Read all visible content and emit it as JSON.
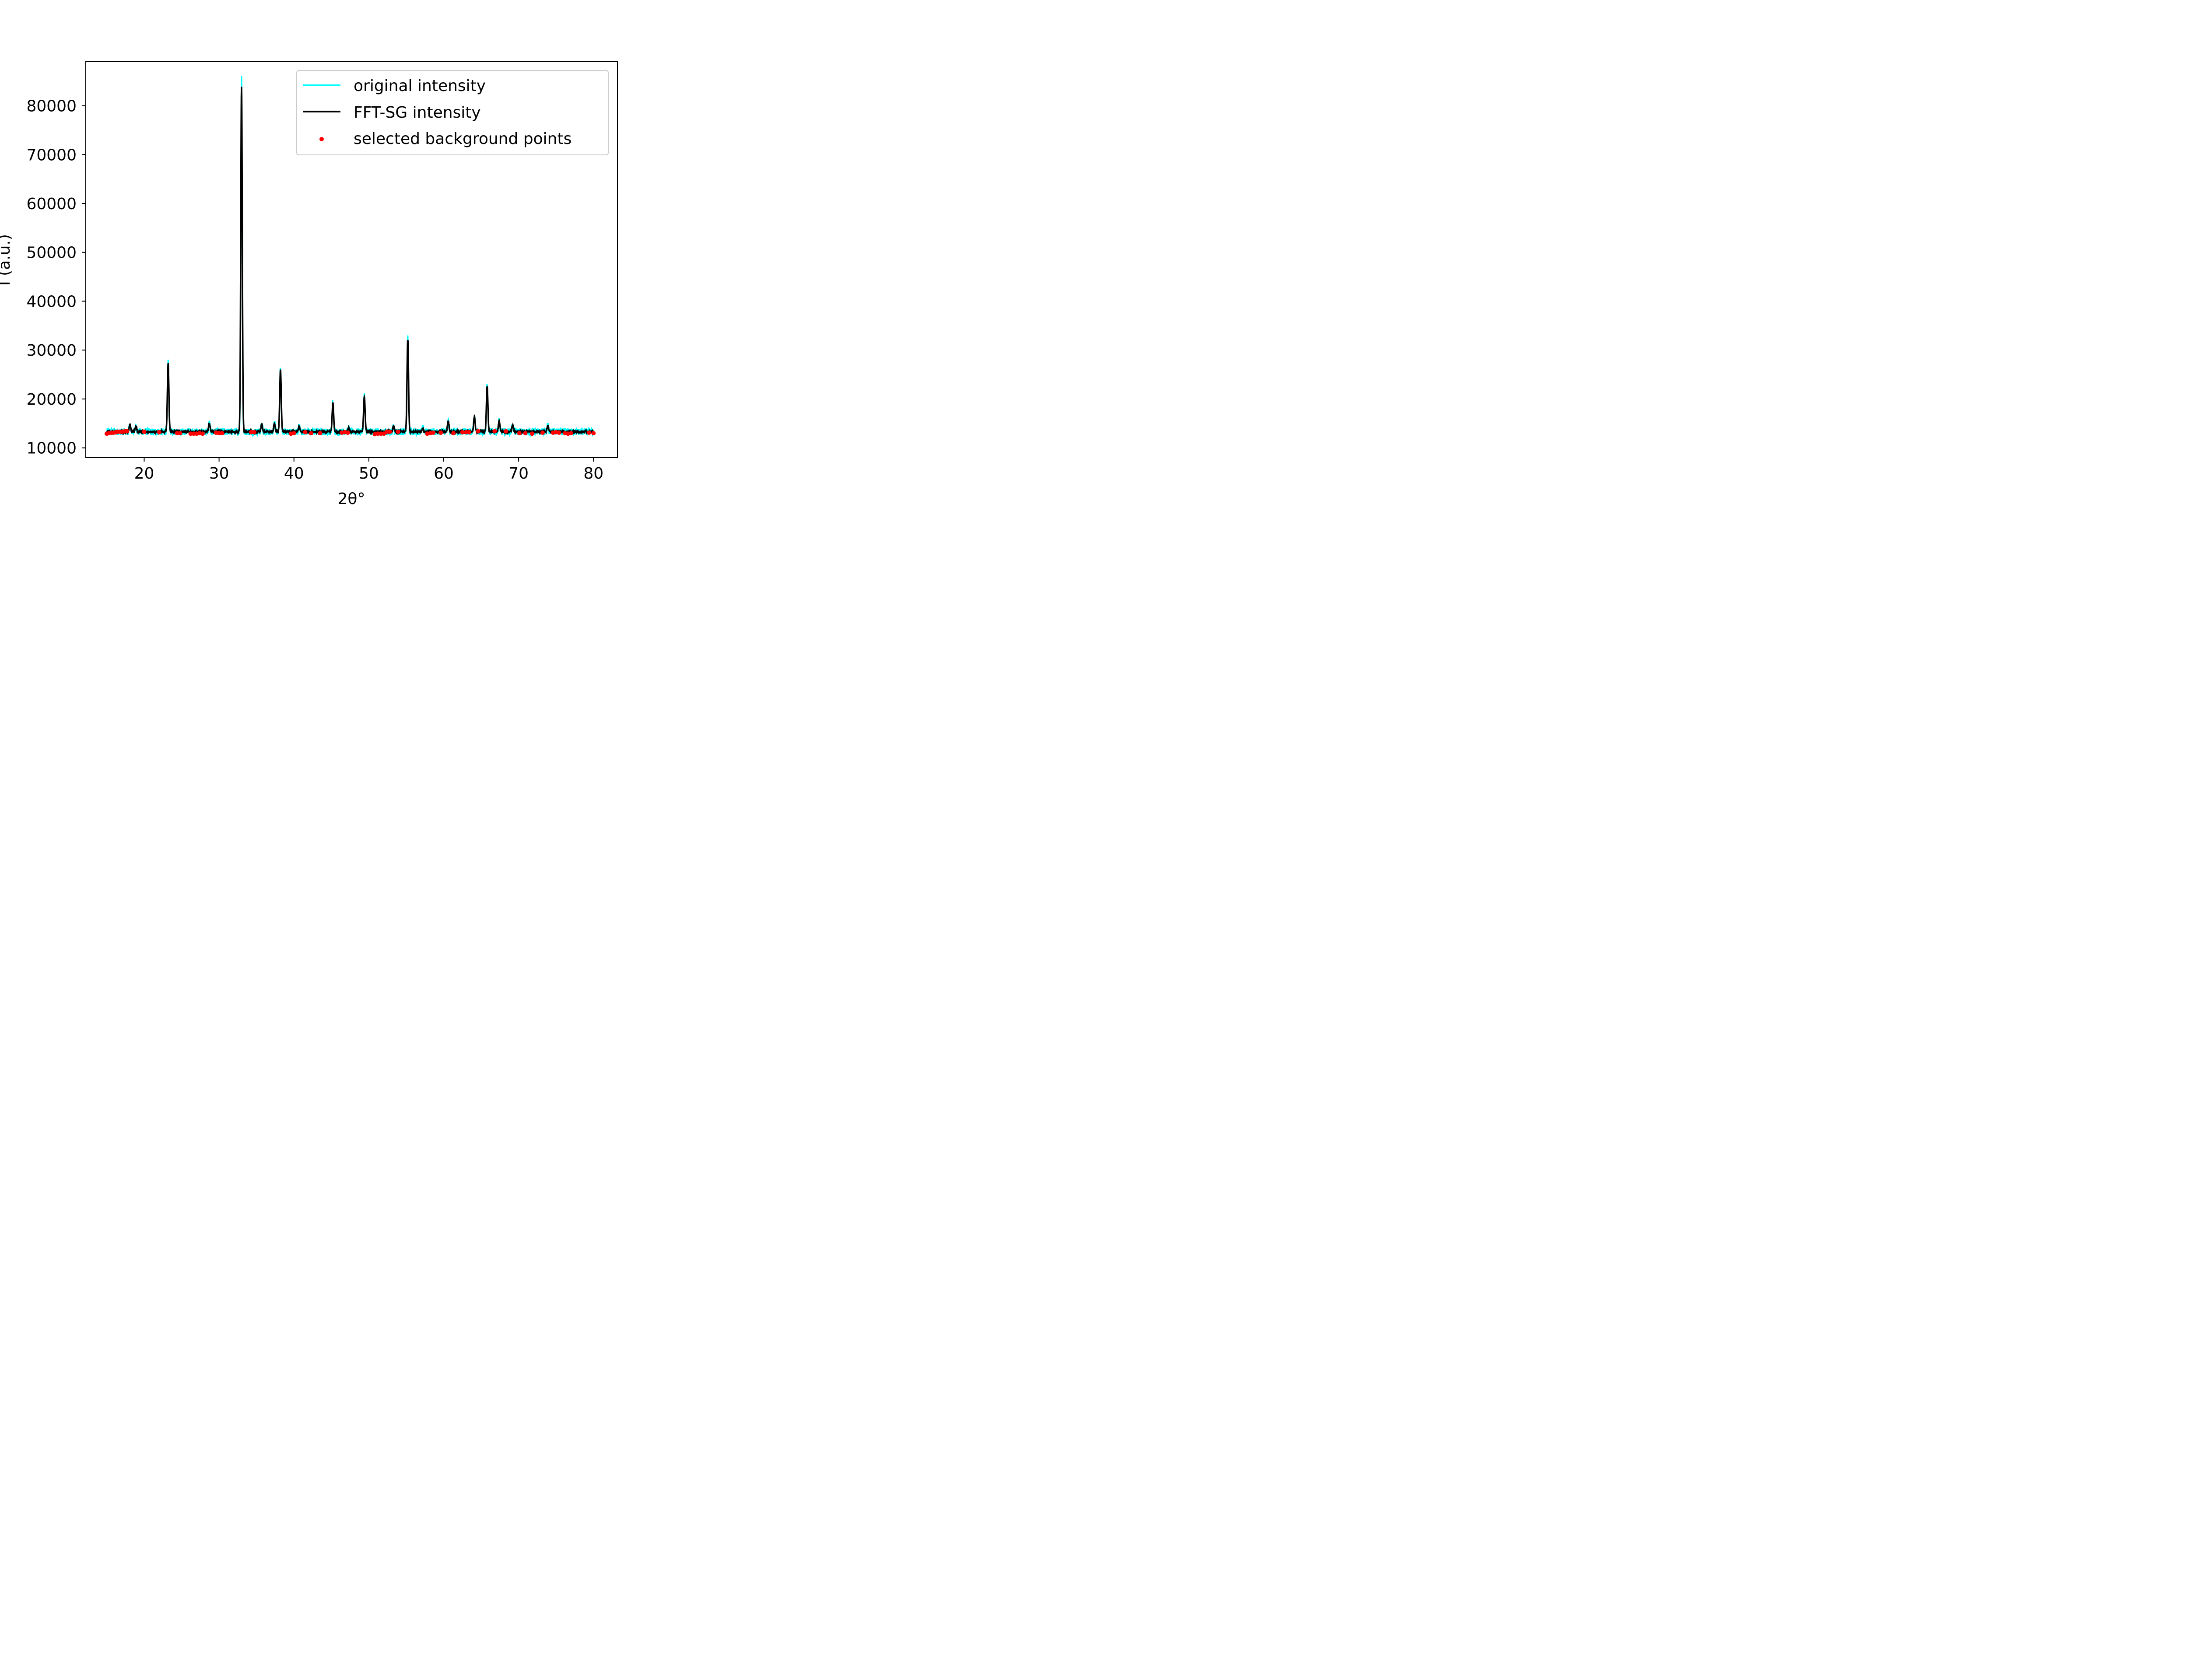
{
  "chart_data": {
    "type": "line",
    "title": "",
    "xlabel": "2θ°",
    "ylabel": "I (a.u.)",
    "xlim": [
      12.2,
      83.2
    ],
    "ylim": [
      8000,
      89000
    ],
    "xticks": [
      20,
      30,
      40,
      50,
      60,
      70,
      80
    ],
    "yticks": [
      10000,
      20000,
      30000,
      40000,
      50000,
      60000,
      70000,
      80000
    ],
    "xtick_labels": [
      "20",
      "30",
      "40",
      "50",
      "60",
      "70",
      "80"
    ],
    "ytick_labels": [
      "10000",
      "20000",
      "30000",
      "40000",
      "50000",
      "60000",
      "70000",
      "80000"
    ],
    "grid": false,
    "legend_position": "upper right",
    "baseline": 13300,
    "x_range": [
      15,
      80
    ],
    "colors": {
      "original": "#00ffff",
      "fft_sg": "#000000",
      "background_points": "#ff0000"
    },
    "peaks": [
      {
        "x": 18.1,
        "y": 14700
      },
      {
        "x": 18.9,
        "y": 14400
      },
      {
        "x": 23.2,
        "y": 27200
      },
      {
        "x": 28.7,
        "y": 15000
      },
      {
        "x": 33.0,
        "y": 84000
      },
      {
        "x": 35.7,
        "y": 14800
      },
      {
        "x": 37.4,
        "y": 15000
      },
      {
        "x": 38.2,
        "y": 26000
      },
      {
        "x": 40.7,
        "y": 14400
      },
      {
        "x": 45.2,
        "y": 19200
      },
      {
        "x": 47.3,
        "y": 14000
      },
      {
        "x": 49.4,
        "y": 20500
      },
      {
        "x": 53.3,
        "y": 14500
      },
      {
        "x": 55.2,
        "y": 32200
      },
      {
        "x": 57.2,
        "y": 14000
      },
      {
        "x": 60.6,
        "y": 15500
      },
      {
        "x": 64.1,
        "y": 16300
      },
      {
        "x": 65.8,
        "y": 22600
      },
      {
        "x": 67.4,
        "y": 15500
      },
      {
        "x": 69.2,
        "y": 14600
      },
      {
        "x": 73.9,
        "y": 14600
      }
    ],
    "series": [
      {
        "name": "original intensity"
      },
      {
        "name": "FFT-SG intensity"
      },
      {
        "name": "selected background points",
        "x": [
          15.0,
          15.3,
          15.6,
          15.9,
          16.2,
          16.5,
          16.8,
          17.1,
          17.4,
          17.7,
          20.0,
          22.0,
          24.4,
          24.8,
          26.2,
          26.6,
          27.0,
          27.4,
          27.8,
          29.6,
          30.0,
          30.4,
          34.3,
          34.7,
          39.6,
          40.0,
          41.5,
          42.3,
          43.5,
          46.4,
          46.8,
          47.2,
          50.8,
          51.2,
          51.6,
          52.0,
          52.4,
          52.8,
          53.9,
          57.8,
          58.2,
          58.6,
          59.6,
          61.3,
          62.5,
          63.0,
          63.4,
          64.6,
          66.8,
          68.3,
          70.1,
          70.9,
          71.8,
          73.2,
          74.6,
          75.0,
          75.4,
          76.2,
          76.6,
          77.0,
          79.4,
          80.0
        ],
        "y": [
          12900,
          13000,
          13100,
          13100,
          13200,
          13300,
          13300,
          13300,
          13400,
          13400,
          13300,
          13200,
          13000,
          13000,
          12900,
          12900,
          12900,
          13000,
          12900,
          13100,
          13000,
          13000,
          13200,
          13200,
          12900,
          13000,
          13200,
          13000,
          13000,
          13100,
          13200,
          13100,
          12800,
          12900,
          12900,
          12900,
          13300,
          13300,
          13300,
          12900,
          13000,
          13100,
          13100,
          13000,
          13200,
          13200,
          13200,
          13400,
          13400,
          13400,
          13000,
          13000,
          12900,
          13100,
          13100,
          13200,
          13100,
          13000,
          12900,
          13000,
          13100,
          13000
        ]
      }
    ]
  }
}
